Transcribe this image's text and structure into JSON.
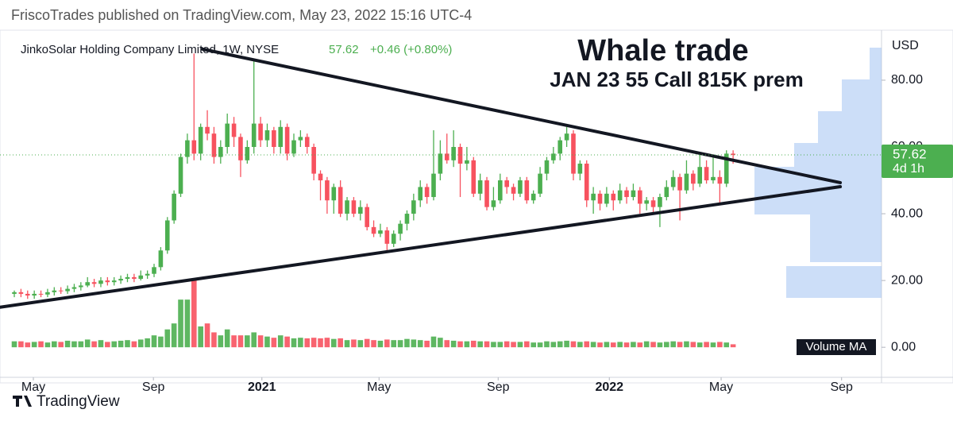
{
  "header": "FriscoTrades published on TradingView.com, May 23, 2022 15:16 UTC-4",
  "footer": "TradingView",
  "chart_data": {
    "type": "candlestick",
    "symbol": "JinkoSolar Holding Company Limited, 1W, NYSE",
    "change": "+0.46 (+0.80%)",
    "annotation": "Whale trade",
    "annotation_sub": "JAN 23 55 Call 815K prem",
    "currency": "USD",
    "countdown": "4d 1h",
    "volume_label": "Volume MA",
    "up_color": "#4caf50",
    "down_color": "#f7525f",
    "xlim": [
      -2.15,
      130.3
    ],
    "xticks": [
      {
        "value": 2.86,
        "label": "May"
      },
      {
        "value": 20.9,
        "label": "Sep"
      },
      {
        "value": 37.2,
        "label": "2021"
      },
      {
        "value": 54.8,
        "label": "May"
      },
      {
        "value": 72.7,
        "label": "Sep"
      },
      {
        "value": 89.4,
        "label": "2022"
      },
      {
        "value": 106.2,
        "label": "May"
      },
      {
        "value": 124.3,
        "label": "Sep"
      }
    ],
    "ylim": [
      -9,
      94.5
    ],
    "yticks": [
      {
        "value": 0,
        "label": "0.00"
      },
      {
        "value": 20,
        "label": "20.00"
      },
      {
        "value": 40,
        "label": "40.00"
      },
      {
        "value": 60,
        "label": "60.00"
      },
      {
        "value": 80,
        "label": "80.00"
      }
    ],
    "volume_ylim": [
      0,
      12
    ],
    "trendlines": [
      [
        [
          28.3,
          89.3
        ],
        [
          124.1,
          49.3
        ]
      ],
      [
        [
          -2.15,
          12
        ],
        [
          124.1,
          48.1
        ]
      ]
    ],
    "ohlc": [
      [
        16,
        17,
        15,
        16.5
      ],
      [
        16.5,
        17.5,
        15,
        16
      ],
      [
        16,
        17,
        14.5,
        15.5
      ],
      [
        15.5,
        17,
        14.5,
        16
      ],
      [
        16,
        17,
        15,
        15.8
      ],
      [
        15.8,
        17.5,
        15,
        16.5
      ],
      [
        16.5,
        18,
        15.5,
        17
      ],
      [
        17,
        18,
        16,
        16.8
      ],
      [
        16.8,
        18.5,
        16,
        17.5
      ],
      [
        17.5,
        19,
        16.5,
        18
      ],
      [
        18,
        19.5,
        17,
        18.5
      ],
      [
        18.5,
        21,
        18,
        19.5
      ],
      [
        19.5,
        20.5,
        18,
        19
      ],
      [
        19,
        21,
        18,
        20
      ],
      [
        20,
        21,
        18.5,
        19.5
      ],
      [
        19.5,
        21,
        18.5,
        20
      ],
      [
        20,
        21.5,
        19,
        20.5
      ],
      [
        20.5,
        22,
        19.5,
        21
      ],
      [
        21,
        22,
        19.5,
        20.5
      ],
      [
        20.5,
        23,
        20,
        21.5
      ],
      [
        21.5,
        23,
        20.5,
        22
      ],
      [
        22,
        25,
        21,
        24
      ],
      [
        24,
        30,
        23,
        29
      ],
      [
        29,
        39,
        28,
        38
      ],
      [
        38,
        47,
        37,
        46
      ],
      [
        46,
        58,
        45,
        57
      ],
      [
        57,
        64,
        55,
        62
      ],
      [
        62,
        88,
        56,
        58
      ],
      [
        58,
        67,
        56,
        66
      ],
      [
        66,
        71,
        62,
        64
      ],
      [
        64,
        66,
        55,
        57
      ],
      [
        57,
        62,
        55,
        60
      ],
      [
        60,
        70,
        58,
        67
      ],
      [
        67,
        69,
        60,
        63
      ],
      [
        63,
        64,
        51,
        56
      ],
      [
        56,
        62,
        55,
        60
      ],
      [
        60,
        86,
        58,
        67
      ],
      [
        67,
        69,
        60,
        62
      ],
      [
        62,
        67,
        60,
        65
      ],
      [
        65,
        66,
        58,
        60
      ],
      [
        60,
        68,
        58,
        66
      ],
      [
        66,
        67,
        56,
        58
      ],
      [
        58,
        64,
        57,
        62
      ],
      [
        62,
        65,
        60,
        63
      ],
      [
        63,
        64,
        58,
        60
      ],
      [
        60,
        61,
        50,
        52
      ],
      [
        52,
        53,
        44,
        50
      ],
      [
        50,
        51,
        40,
        44
      ],
      [
        44,
        49,
        40,
        48
      ],
      [
        48,
        50,
        39,
        40
      ],
      [
        40,
        45,
        38,
        44
      ],
      [
        44,
        45,
        39,
        40
      ],
      [
        40,
        44,
        38,
        42
      ],
      [
        42,
        43,
        35,
        36
      ],
      [
        36,
        38,
        33,
        34
      ],
      [
        34,
        37,
        33,
        35
      ],
      [
        35,
        36,
        29,
        31
      ],
      [
        31,
        35,
        30,
        34
      ],
      [
        34,
        38,
        32,
        37
      ],
      [
        37,
        41,
        35,
        40
      ],
      [
        40,
        46,
        38,
        44
      ],
      [
        44,
        50,
        42,
        48
      ],
      [
        48,
        49,
        43,
        45
      ],
      [
        45,
        65,
        44,
        52
      ],
      [
        52,
        62,
        50,
        58
      ],
      [
        58,
        64,
        55,
        56
      ],
      [
        56,
        65,
        54,
        60
      ],
      [
        60,
        61,
        45,
        55
      ],
      [
        55,
        60,
        53,
        56
      ],
      [
        56,
        57,
        45,
        46
      ],
      [
        46,
        52,
        44,
        50
      ],
      [
        50,
        51,
        41,
        42
      ],
      [
        42,
        48,
        41,
        44
      ],
      [
        44,
        52,
        43,
        50
      ],
      [
        50,
        51,
        46,
        48
      ],
      [
        48,
        49,
        44,
        46
      ],
      [
        46,
        51,
        45,
        50
      ],
      [
        50,
        51,
        43,
        44
      ],
      [
        44,
        47,
        43,
        46
      ],
      [
        46,
        54,
        45,
        52
      ],
      [
        52,
        57,
        50,
        56
      ],
      [
        56,
        60,
        55,
        58
      ],
      [
        58,
        63,
        56,
        62
      ],
      [
        62,
        66,
        60,
        64
      ],
      [
        64,
        65,
        50,
        52
      ],
      [
        52,
        56,
        50,
        55
      ],
      [
        55,
        56,
        42,
        44
      ],
      [
        44,
        48,
        40,
        46
      ],
      [
        46,
        47,
        41,
        43
      ],
      [
        43,
        48,
        42,
        46
      ],
      [
        46,
        47,
        41,
        44
      ],
      [
        44,
        49,
        43,
        47
      ],
      [
        47,
        48,
        43,
        45
      ],
      [
        45,
        49,
        44,
        47
      ],
      [
        47,
        48,
        40,
        43
      ],
      [
        43,
        45,
        41,
        44
      ],
      [
        44,
        45,
        40,
        42
      ],
      [
        42,
        46,
        36,
        45
      ],
      [
        45,
        50,
        44,
        48
      ],
      [
        48,
        53,
        47,
        51
      ],
      [
        51,
        52,
        38,
        47
      ],
      [
        47,
        56,
        46,
        52
      ],
      [
        52,
        53,
        47,
        49
      ],
      [
        49,
        58,
        48,
        54
      ],
      [
        54,
        56,
        49,
        50
      ],
      [
        50,
        57,
        49,
        51
      ],
      [
        51,
        53,
        43,
        49
      ],
      [
        49,
        59,
        48,
        58
      ],
      [
        58,
        59,
        55,
        57.62
      ]
    ],
    "volume": [
      1,
      1,
      0.8,
      0.9,
      1,
      0.8,
      1,
      0.9,
      1.1,
      1,
      1,
      1.3,
      1,
      1.2,
      0.9,
      1,
      1.1,
      1.2,
      1,
      1.3,
      1.5,
      2,
      1.8,
      3,
      4,
      8,
      8,
      11.5,
      3.5,
      4,
      2.5,
      2,
      3,
      2,
      2,
      2,
      2.5,
      2,
      1.8,
      1.6,
      2,
      1.8,
      1.5,
      1.6,
      1.5,
      1.6,
      1.5,
      1.6,
      1.4,
      1.5,
      1.2,
      1.3,
      1.2,
      1.4,
      1.2,
      1.1,
      1.3,
      1.2,
      1.2,
      1.4,
      1.3,
      1.2,
      1.1,
      1.8,
      1.6,
      1.2,
      1.1,
      1,
      1,
      1.1,
      1,
      1,
      0.9,
      0.9,
      1,
      0.9,
      0.9,
      1,
      0.8,
      0.8,
      1,
      0.9,
      1,
      1.1,
      1,
      0.9,
      1,
      0.9,
      0.8,
      0.9,
      0.8,
      0.9,
      0.8,
      0.9,
      0.8,
      1,
      0.9,
      0.8,
      0.9,
      1,
      0.9,
      1,
      0.9,
      0.8,
      0.9,
      0.8,
      0.9,
      0.8,
      0.5
    ]
  }
}
